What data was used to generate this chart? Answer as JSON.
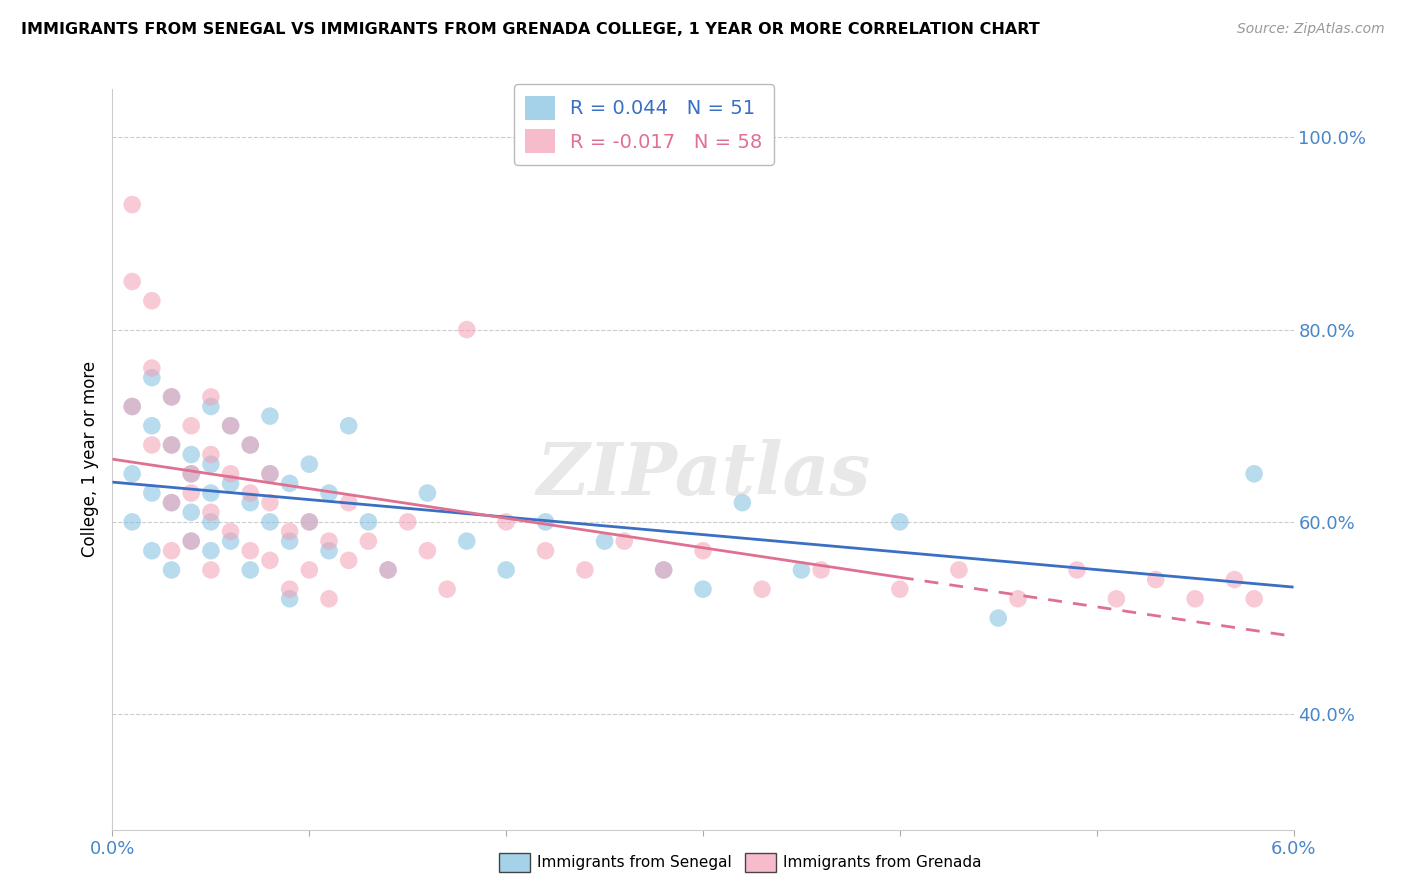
{
  "title": "IMMIGRANTS FROM SENEGAL VS IMMIGRANTS FROM GRENADA COLLEGE, 1 YEAR OR MORE CORRELATION CHART",
  "source": "Source: ZipAtlas.com",
  "ylabel": "College, 1 year or more",
  "xlim": [
    0.0,
    0.06
  ],
  "ylim": [
    0.28,
    1.05
  ],
  "yticks": [
    0.4,
    0.6,
    0.8,
    1.0
  ],
  "ytick_labels": [
    "40.0%",
    "60.0%",
    "80.0%",
    "100.0%"
  ],
  "senegal_color": "#7fbfdf",
  "grenada_color": "#f4a0b5",
  "senegal_line_color": "#3a6fc4",
  "grenada_line_color": "#e07090",
  "watermark": "ZIPatlas",
  "senegal_x": [
    0.001,
    0.001,
    0.001,
    0.002,
    0.002,
    0.002,
    0.002,
    0.003,
    0.003,
    0.003,
    0.003,
    0.004,
    0.004,
    0.004,
    0.004,
    0.005,
    0.005,
    0.005,
    0.005,
    0.005,
    0.006,
    0.006,
    0.006,
    0.007,
    0.007,
    0.007,
    0.008,
    0.008,
    0.008,
    0.009,
    0.009,
    0.009,
    0.01,
    0.01,
    0.011,
    0.011,
    0.012,
    0.013,
    0.014,
    0.016,
    0.018,
    0.02,
    0.022,
    0.025,
    0.028,
    0.03,
    0.032,
    0.035,
    0.04,
    0.045,
    0.058
  ],
  "senegal_y": [
    0.72,
    0.65,
    0.6,
    0.7,
    0.63,
    0.57,
    0.75,
    0.68,
    0.62,
    0.55,
    0.73,
    0.67,
    0.61,
    0.58,
    0.65,
    0.72,
    0.66,
    0.6,
    0.57,
    0.63,
    0.7,
    0.64,
    0.58,
    0.68,
    0.62,
    0.55,
    0.65,
    0.6,
    0.71,
    0.64,
    0.58,
    0.52,
    0.66,
    0.6,
    0.63,
    0.57,
    0.7,
    0.6,
    0.55,
    0.63,
    0.58,
    0.55,
    0.6,
    0.58,
    0.55,
    0.53,
    0.62,
    0.55,
    0.6,
    0.5,
    0.65
  ],
  "grenada_x": [
    0.001,
    0.001,
    0.001,
    0.002,
    0.002,
    0.002,
    0.003,
    0.003,
    0.003,
    0.003,
    0.004,
    0.004,
    0.004,
    0.004,
    0.005,
    0.005,
    0.005,
    0.005,
    0.006,
    0.006,
    0.006,
    0.007,
    0.007,
    0.007,
    0.008,
    0.008,
    0.008,
    0.009,
    0.009,
    0.01,
    0.01,
    0.011,
    0.011,
    0.012,
    0.012,
    0.013,
    0.014,
    0.015,
    0.016,
    0.017,
    0.018,
    0.02,
    0.022,
    0.024,
    0.026,
    0.028,
    0.03,
    0.033,
    0.036,
    0.04,
    0.043,
    0.046,
    0.049,
    0.051,
    0.053,
    0.055,
    0.057,
    0.058
  ],
  "grenada_y": [
    0.93,
    0.85,
    0.72,
    0.83,
    0.68,
    0.76,
    0.68,
    0.62,
    0.57,
    0.73,
    0.65,
    0.58,
    0.7,
    0.63,
    0.67,
    0.61,
    0.55,
    0.73,
    0.65,
    0.59,
    0.7,
    0.63,
    0.57,
    0.68,
    0.62,
    0.56,
    0.65,
    0.59,
    0.53,
    0.6,
    0.55,
    0.58,
    0.52,
    0.62,
    0.56,
    0.58,
    0.55,
    0.6,
    0.57,
    0.53,
    0.8,
    0.6,
    0.57,
    0.55,
    0.58,
    0.55,
    0.57,
    0.53,
    0.55,
    0.53,
    0.55,
    0.52,
    0.55,
    0.52,
    0.54,
    0.52,
    0.54,
    0.52
  ]
}
